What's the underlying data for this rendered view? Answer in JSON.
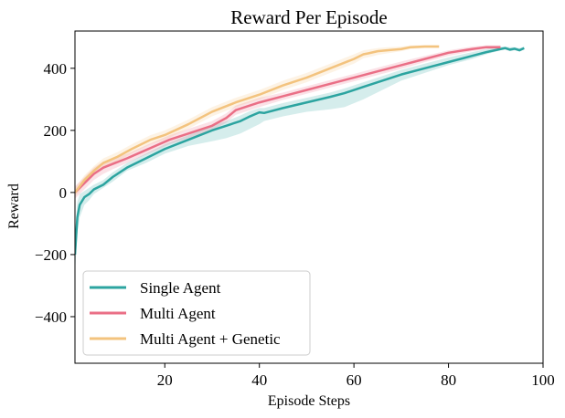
{
  "chart_data": {
    "type": "line",
    "title": "Reward Per Episode",
    "xlabel": "Episode Steps",
    "ylabel": "Reward",
    "xlim": [
      1,
      100
    ],
    "ylim": [
      -550,
      520
    ],
    "xticks": [
      20,
      40,
      60,
      80,
      100
    ],
    "yticks": [
      -400,
      -200,
      0,
      200,
      400
    ],
    "tick_labels_x": [
      "20",
      "40",
      "60",
      "80",
      "100"
    ],
    "tick_labels_y": [
      "−400",
      "−200",
      "0",
      "200",
      "400"
    ],
    "grid": false,
    "legend_position": "lower-left",
    "series": [
      {
        "name": "Single Agent",
        "color": "#2ca4a0",
        "x": [
          1,
          1.5,
          2,
          3,
          4,
          5,
          7,
          9,
          12,
          16,
          20,
          25,
          30,
          33,
          36,
          38,
          40,
          41,
          45,
          50,
          55,
          58,
          62,
          66,
          70,
          75,
          80,
          85,
          88,
          91,
          92,
          93,
          94,
          95,
          96
        ],
        "y": [
          -200,
          -80,
          -40,
          -15,
          -5,
          10,
          25,
          50,
          80,
          110,
          140,
          170,
          200,
          215,
          230,
          245,
          258,
          256,
          272,
          290,
          308,
          320,
          340,
          360,
          380,
          400,
          420,
          440,
          452,
          462,
          465,
          460,
          463,
          458,
          465
        ],
        "band_lower": [
          -260,
          -130,
          -80,
          -40,
          -25,
          -5,
          15,
          35,
          70,
          95,
          125,
          150,
          165,
          175,
          190,
          205,
          220,
          230,
          245,
          260,
          268,
          275,
          300,
          330,
          360,
          385,
          410,
          430,
          445,
          458,
          460,
          455,
          458,
          455,
          460
        ],
        "band_upper": [
          -150,
          -30,
          -5,
          5,
          15,
          25,
          40,
          65,
          95,
          125,
          155,
          185,
          215,
          230,
          248,
          262,
          272,
          272,
          288,
          305,
          322,
          335,
          355,
          375,
          395,
          415,
          435,
          452,
          462,
          470,
          470,
          468,
          468,
          465,
          470
        ]
      },
      {
        "name": "Multi Agent",
        "color": "#ea6f86",
        "x": [
          1,
          3,
          5,
          7,
          9,
          12,
          15,
          18,
          21,
          25,
          30,
          33,
          35,
          40,
          45,
          50,
          55,
          60,
          65,
          70,
          75,
          80,
          85,
          88,
          91
        ],
        "y": [
          0,
          30,
          60,
          80,
          92,
          110,
          130,
          150,
          170,
          190,
          215,
          240,
          265,
          290,
          310,
          330,
          350,
          370,
          390,
          410,
          430,
          450,
          462,
          468,
          468
        ],
        "band_lower": [
          -20,
          10,
          40,
          60,
          75,
          95,
          115,
          135,
          155,
          175,
          200,
          225,
          250,
          275,
          298,
          318,
          338,
          358,
          378,
          398,
          420,
          440,
          455,
          462,
          462
        ],
        "band_upper": [
          20,
          50,
          80,
          100,
          108,
          125,
          145,
          165,
          185,
          205,
          230,
          255,
          280,
          305,
          322,
          342,
          362,
          382,
          402,
          422,
          440,
          458,
          470,
          474,
          474
        ]
      },
      {
        "name": "Multi Agent + Genetic",
        "color": "#f3c37e",
        "x": [
          1,
          3,
          5,
          7,
          10,
          13,
          17,
          20,
          25,
          30,
          35,
          40,
          45,
          50,
          55,
          60,
          62,
          63,
          65,
          67,
          70,
          72,
          75,
          78
        ],
        "y": [
          0,
          40,
          70,
          95,
          115,
          140,
          170,
          185,
          220,
          260,
          290,
          315,
          345,
          370,
          400,
          430,
          445,
          448,
          455,
          458,
          462,
          468,
          470,
          470
        ],
        "band_lower": [
          -15,
          25,
          55,
          80,
          100,
          125,
          155,
          170,
          205,
          245,
          275,
          300,
          330,
          355,
          385,
          415,
          432,
          435,
          443,
          448,
          455,
          462,
          465,
          465
        ],
        "band_upper": [
          15,
          55,
          85,
          110,
          130,
          155,
          185,
          200,
          235,
          275,
          305,
          330,
          360,
          385,
          415,
          445,
          458,
          460,
          465,
          468,
          470,
          474,
          475,
          475
        ]
      }
    ]
  }
}
